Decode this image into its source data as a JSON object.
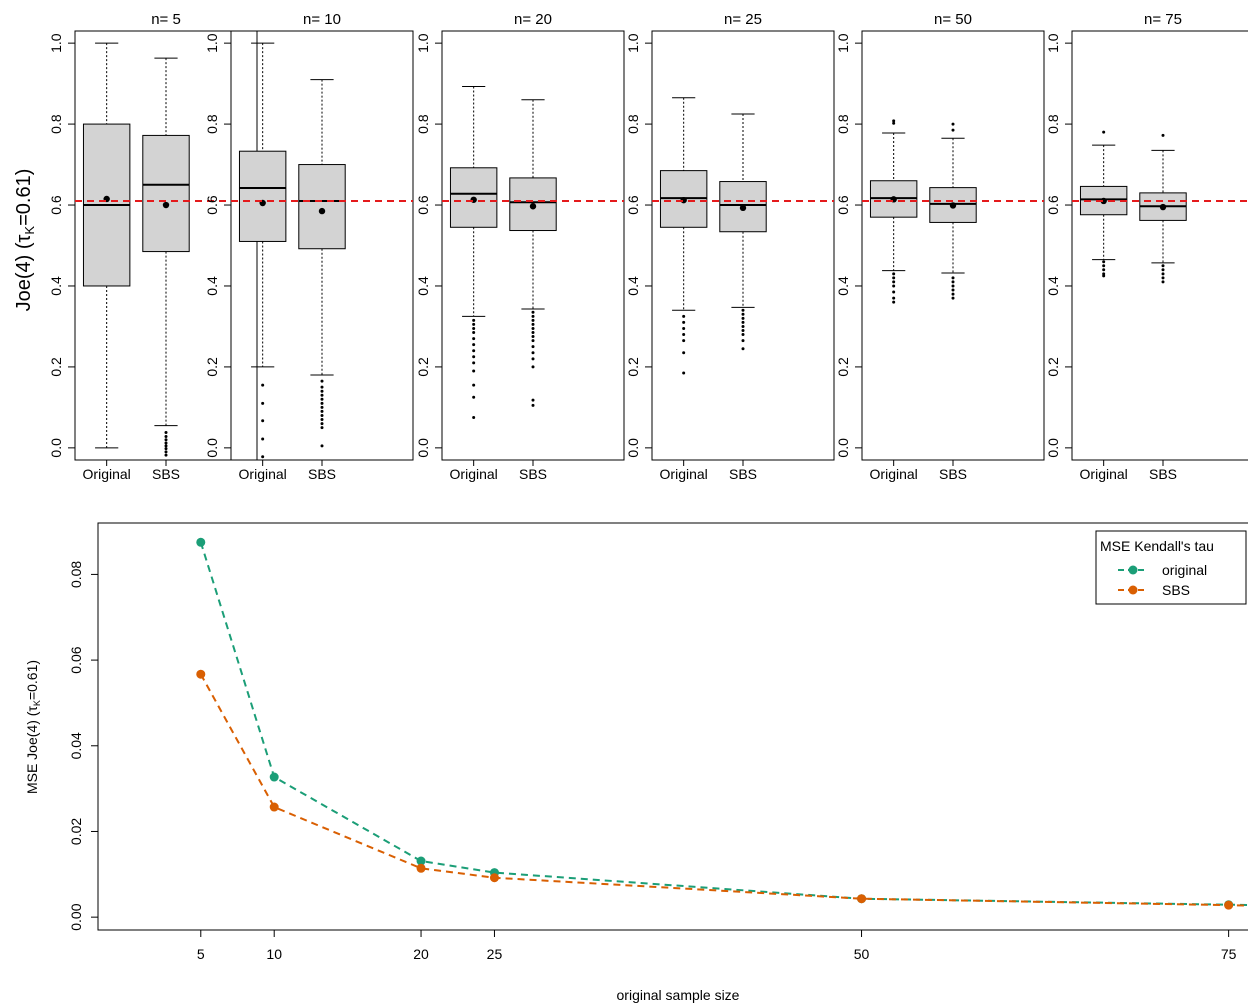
{
  "chart_data": [
    {
      "type": "box",
      "ylabel_main": "Joe(4) (",
      "ylabel_tau": "τ",
      "ylabel_sub": "K",
      "ylabel_rest": "=0.61)",
      "ylim": [
        -0.03,
        1.03
      ],
      "yticks": [
        "0.0",
        "0.2",
        "0.4",
        "0.6",
        "0.8",
        "1.0"
      ],
      "reference_line": 0.61,
      "reference_color": "#e41a1c",
      "box_fill": "#d3d3d3",
      "categories": [
        "Original",
        "SBS"
      ],
      "panels": [
        {
          "title": "n= 5",
          "boxes": [
            {
              "lower_whisker": 0.0,
              "q1": 0.4,
              "median": 0.6,
              "q3": 0.8,
              "upper_whisker": 1.0,
              "mean": 0.615,
              "outliers": []
            },
            {
              "lower_whisker": 0.055,
              "q1": 0.485,
              "median": 0.65,
              "q3": 0.772,
              "upper_whisker": 0.963,
              "mean": 0.6,
              "outliers": [
                0.038,
                0.028,
                0.02,
                0.012,
                0.005,
                -0.002,
                -0.01,
                -0.018
              ]
            }
          ]
        },
        {
          "title": "n= 10",
          "boxes": [
            {
              "lower_whisker": 0.2,
              "q1": 0.51,
              "median": 0.642,
              "q3": 0.733,
              "upper_whisker": 1.0,
              "mean": 0.605,
              "outliers": [
                0.155,
                0.11,
                0.067,
                0.022,
                -0.022
              ]
            },
            {
              "lower_whisker": 0.18,
              "q1": 0.492,
              "median": 0.61,
              "q3": 0.7,
              "upper_whisker": 0.91,
              "mean": 0.585,
              "outliers": [
                0.165,
                0.15,
                0.14,
                0.13,
                0.12,
                0.11,
                0.1,
                0.09,
                0.08,
                0.07,
                0.06,
                0.05,
                0.005
              ]
            }
          ]
        },
        {
          "title": "n= 20",
          "boxes": [
            {
              "lower_whisker": 0.325,
              "q1": 0.545,
              "median": 0.628,
              "q3": 0.692,
              "upper_whisker": 0.893,
              "mean": 0.613,
              "outliers": [
                0.315,
                0.305,
                0.295,
                0.285,
                0.27,
                0.255,
                0.24,
                0.225,
                0.21,
                0.19,
                0.155,
                0.125,
                0.075
              ]
            },
            {
              "lower_whisker": 0.343,
              "q1": 0.537,
              "median": 0.607,
              "q3": 0.667,
              "upper_whisker": 0.86,
              "mean": 0.597,
              "outliers": [
                0.335,
                0.325,
                0.315,
                0.305,
                0.295,
                0.285,
                0.275,
                0.265,
                0.25,
                0.235,
                0.22,
                0.2,
                0.118,
                0.105
              ]
            }
          ]
        },
        {
          "title": "n= 25",
          "boxes": [
            {
              "lower_whisker": 0.34,
              "q1": 0.545,
              "median": 0.617,
              "q3": 0.685,
              "upper_whisker": 0.865,
              "mean": 0.612,
              "outliers": [
                0.325,
                0.31,
                0.295,
                0.28,
                0.265,
                0.235,
                0.185
              ]
            },
            {
              "lower_whisker": 0.347,
              "q1": 0.534,
              "median": 0.6,
              "q3": 0.658,
              "upper_whisker": 0.825,
              "mean": 0.593,
              "outliers": [
                0.34,
                0.33,
                0.32,
                0.31,
                0.3,
                0.29,
                0.28,
                0.265,
                0.245
              ]
            }
          ]
        },
        {
          "title": "n= 50",
          "boxes": [
            {
              "lower_whisker": 0.438,
              "q1": 0.57,
              "median": 0.617,
              "q3": 0.66,
              "upper_whisker": 0.778,
              "mean": 0.614,
              "outliers": [
                0.808,
                0.802,
                0.43,
                0.42,
                0.41,
                0.4,
                0.385,
                0.37,
                0.36
              ]
            },
            {
              "lower_whisker": 0.432,
              "q1": 0.557,
              "median": 0.603,
              "q3": 0.643,
              "upper_whisker": 0.765,
              "mean": 0.599,
              "outliers": [
                0.8,
                0.785,
                0.42,
                0.41,
                0.4,
                0.39,
                0.38,
                0.37
              ]
            }
          ]
        },
        {
          "title": "n= 75",
          "boxes": [
            {
              "lower_whisker": 0.465,
              "q1": 0.576,
              "median": 0.614,
              "q3": 0.646,
              "upper_whisker": 0.748,
              "mean": 0.61,
              "outliers": [
                0.78,
                0.46,
                0.45,
                0.44,
                0.43,
                0.425
              ]
            },
            {
              "lower_whisker": 0.457,
              "q1": 0.562,
              "median": 0.597,
              "q3": 0.63,
              "upper_whisker": 0.735,
              "mean": 0.595,
              "outliers": [
                0.772,
                0.45,
                0.44,
                0.43,
                0.42,
                0.41
              ]
            }
          ]
        }
      ]
    },
    {
      "type": "line",
      "xlabel": "original sample size",
      "ylabel_main": "MSE Joe(4) (",
      "ylabel_tau": "τ",
      "ylabel_sub": "K",
      "ylabel_rest": "=0.61)",
      "x": [
        5,
        10,
        20,
        25,
        50,
        75
      ],
      "xticks": [
        "5",
        "10",
        "20",
        "25",
        "50",
        "75"
      ],
      "xlim": [
        -2,
        77
      ],
      "ylim": [
        -0.003,
        0.092
      ],
      "yticks": [
        "0.00",
        "0.02",
        "0.04",
        "0.06",
        "0.08"
      ],
      "legend_title": "MSE Kendall's tau",
      "legend_position": "top-right",
      "series": [
        {
          "name": "original",
          "color": "#1b9e77",
          "values": [
            0.0875,
            0.0327,
            0.0131,
            0.0104,
            0.0043,
            0.0029
          ]
        },
        {
          "name": "SBS",
          "color": "#d95f02",
          "values": [
            0.0567,
            0.0257,
            0.0114,
            0.0092,
            0.0043,
            0.0028
          ]
        }
      ]
    }
  ]
}
